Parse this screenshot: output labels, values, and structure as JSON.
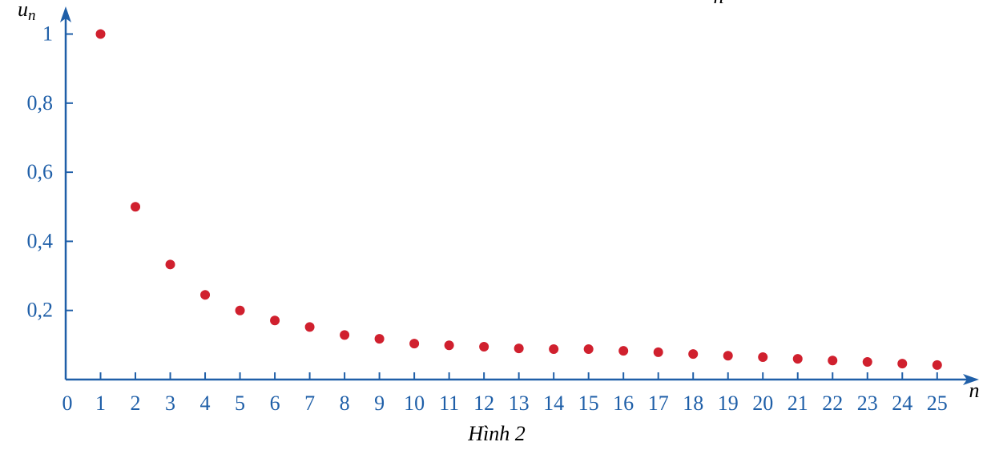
{
  "chart_data": {
    "type": "scatter",
    "fragment": "n",
    "y_label": {
      "base": "u",
      "sub": "n"
    },
    "x_label": "n",
    "caption": "Hình 2",
    "x": [
      1,
      2,
      3,
      4,
      5,
      6,
      7,
      8,
      9,
      10,
      11,
      12,
      13,
      14,
      15,
      16,
      17,
      18,
      19,
      20,
      21,
      22,
      23,
      24,
      25
    ],
    "series": [
      {
        "color": "#d0202e",
        "values": [
          1,
          0.5,
          0.333,
          0.245,
          0.2,
          0.171,
          0.152,
          0.129,
          0.118,
          0.104,
          0.099,
          0.095,
          0.09,
          0.088,
          0.088,
          0.083,
          0.079,
          0.074,
          0.069,
          0.065,
          0.06,
          0.055,
          0.051,
          0.046,
          0.042
        ]
      }
    ],
    "axis_color": "#1f5fa8",
    "xlim": [
      0,
      26.2
    ],
    "ylim": [
      0,
      1.08
    ],
    "xticks": [
      0,
      1,
      2,
      3,
      4,
      5,
      6,
      7,
      8,
      9,
      10,
      11,
      12,
      13,
      14,
      15,
      16,
      17,
      18,
      19,
      20,
      21,
      22,
      23,
      24,
      25
    ],
    "yticks": [
      {
        "value": 0.2,
        "label": "0,2"
      },
      {
        "value": 0.4,
        "label": "0,4"
      },
      {
        "value": 0.6,
        "label": "0,6"
      },
      {
        "value": 0.8,
        "label": "0,8"
      },
      1
    ]
  }
}
